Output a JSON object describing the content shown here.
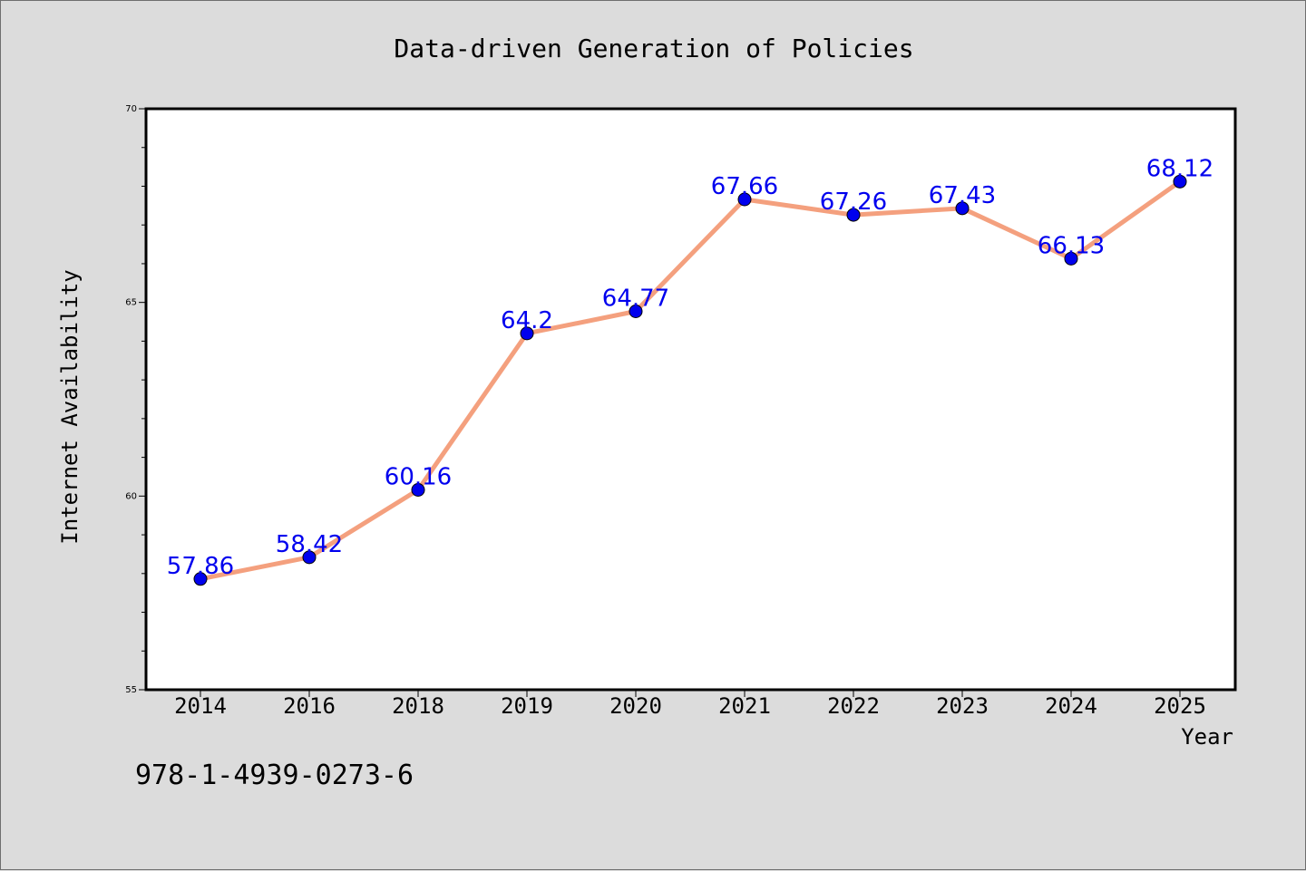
{
  "chart_data": {
    "type": "line",
    "title": "Data-driven Generation of Policies",
    "xlabel": "Year",
    "ylabel": "Internet Availability",
    "categories": [
      "2014",
      "2016",
      "2018",
      "2019",
      "2020",
      "2021",
      "2022",
      "2023",
      "2024",
      "2025"
    ],
    "series": [
      {
        "values": [
          57.86,
          58.42,
          60.16,
          64.2,
          64.77,
          67.66,
          67.26,
          67.43,
          66.13,
          68.12
        ],
        "data_labels": [
          "57.86",
          "58.42",
          "60.16",
          "64.2",
          "64.77",
          "67.66",
          "67.26",
          "67.43",
          "66.13",
          "68.12"
        ],
        "line_color": "#f4a07e",
        "marker_color": "#0000ee"
      }
    ],
    "ylim": [
      55,
      70
    ],
    "yticks": [
      "55",
      "60",
      "65",
      "70"
    ],
    "grid": false,
    "annotation": "978-1-4939-0273-6"
  },
  "colors": {
    "background": "#dcdcdc",
    "plot_area": "#ffffff",
    "line": "#f4a07e",
    "marker": "#0000ee",
    "data_label": "#0000ee"
  }
}
